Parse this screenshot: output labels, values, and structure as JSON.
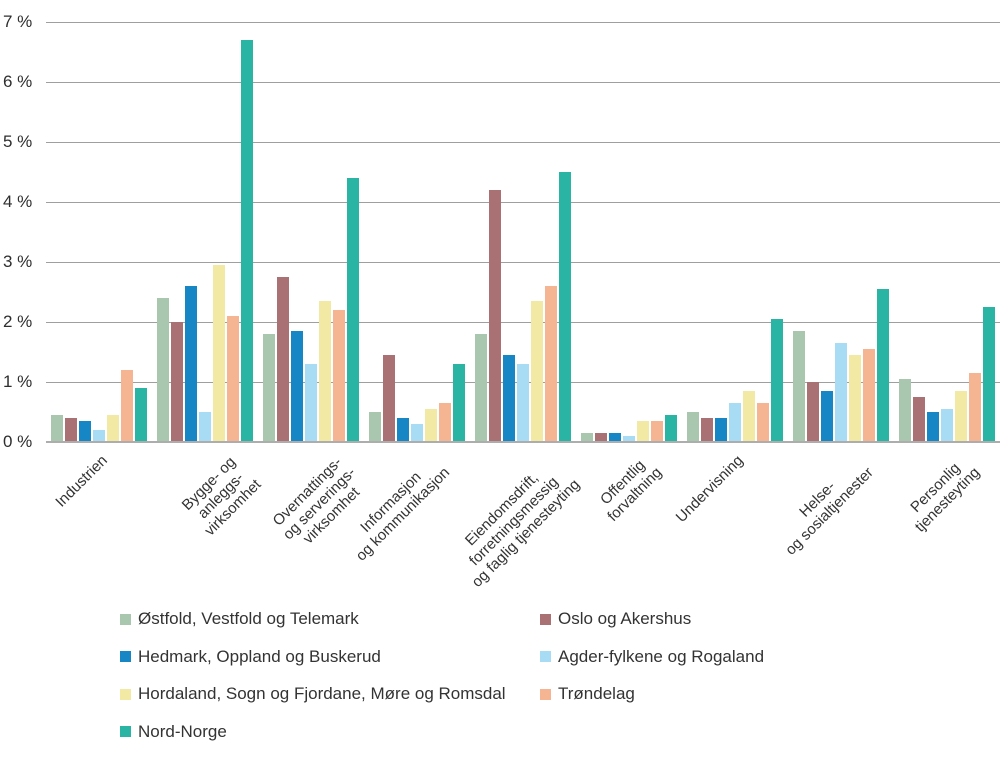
{
  "chart_data": {
    "type": "bar",
    "title": "",
    "xlabel": "",
    "ylabel": "",
    "ylim": [
      0,
      7
    ],
    "grid": true,
    "yticks": [
      "0 %",
      "1 %",
      "2 %",
      "3 %",
      "4 %",
      "5 %",
      "6 %",
      "7 %"
    ],
    "legend_position": "bottom, two columns",
    "categories": [
      [
        "Industrien"
      ],
      [
        "Bygge- og",
        "anleggs-",
        "virksomhet"
      ],
      [
        "Overnattings-",
        "og serverings-",
        "virksomhet"
      ],
      [
        "Informasjon",
        "og kommunikasjon"
      ],
      [
        "Eiendomsdrift,",
        "forretningsmessig",
        "og faglig tjenesteyting"
      ],
      [
        "Offentlig",
        "forvaltning"
      ],
      [
        "Undervisning"
      ],
      [
        "Helse-",
        "og sosialtjenester"
      ],
      [
        "Personlig",
        "tjenesteyting"
      ]
    ],
    "series": [
      {
        "name": "Østfold, Vestfold og Telemark",
        "color": "#a9c6ae",
        "values": [
          0.45,
          2.4,
          1.8,
          0.5,
          1.8,
          0.15,
          0.5,
          1.85,
          1.05
        ]
      },
      {
        "name": "Oslo og Akershus",
        "color": "#aa7174",
        "values": [
          0.4,
          2.0,
          2.75,
          1.45,
          4.2,
          0.15,
          0.4,
          1.0,
          0.75
        ]
      },
      {
        "name": "Hedmark, Oppland og Buskerud",
        "color": "#1786c5",
        "values": [
          0.35,
          2.6,
          1.85,
          0.4,
          1.45,
          0.15,
          0.4,
          0.85,
          0.5
        ]
      },
      {
        "name": "Agder-fylkene og Rogaland",
        "color": "#a8dbf4",
        "values": [
          0.2,
          0.5,
          1.3,
          0.3,
          1.3,
          0.1,
          0.65,
          1.65,
          0.55
        ]
      },
      {
        "name": "Hordaland, Sogn og Fjordane, Møre og Romsdal",
        "color": "#f2eaa4",
        "values": [
          0.45,
          2.95,
          2.35,
          0.55,
          2.35,
          0.35,
          0.85,
          1.45,
          0.85
        ]
      },
      {
        "name": "Trøndelag",
        "color": "#f5b492",
        "values": [
          1.2,
          2.1,
          2.2,
          0.65,
          2.6,
          0.35,
          0.65,
          1.55,
          1.15
        ]
      },
      {
        "name": "Nord-Norge",
        "color": "#2ab4a4",
        "values": [
          0.9,
          6.7,
          4.4,
          1.3,
          4.5,
          0.45,
          2.05,
          2.55,
          2.25
        ]
      }
    ],
    "legend_columns": [
      [
        0,
        2,
        4,
        6
      ],
      [
        1,
        3,
        5
      ]
    ]
  }
}
